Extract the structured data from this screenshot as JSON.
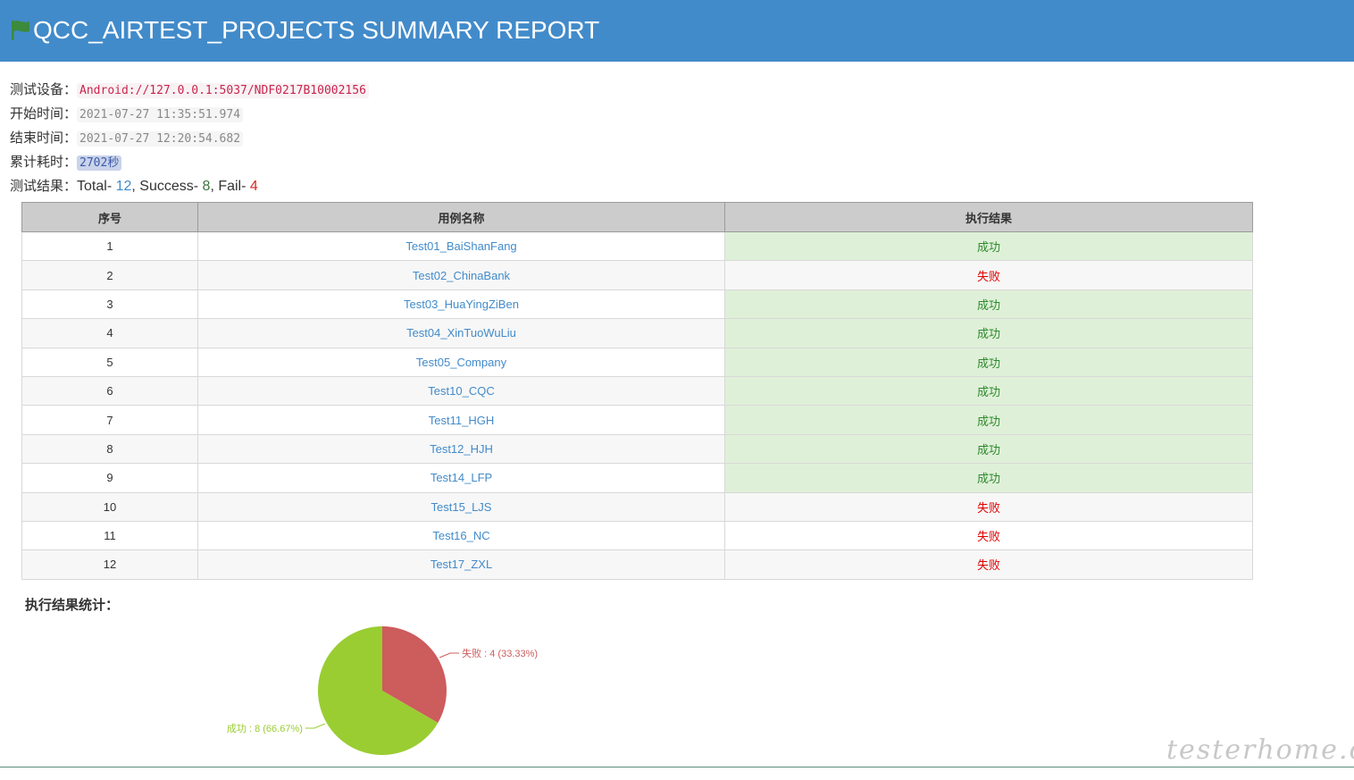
{
  "header": {
    "title": "QCC_AIRTEST_PROJECTS SUMMARY REPORT",
    "flag_color": "#3c8a3c"
  },
  "info": {
    "device_label": "测试设备：",
    "device_value": "Android://127.0.0.1:5037/NDF0217B10002156",
    "start_label": "开始时间：",
    "start_value": "2021-07-27 11:35:51.974",
    "end_label": "结束时间：",
    "end_value": "2021-07-27 12:20:54.682",
    "duration_label": "累计耗时：",
    "duration_value": "2702秒",
    "result_label": "测试结果：",
    "total_text": "Total- ",
    "total_value": "12",
    "success_text": ", Success- ",
    "success_value": "8",
    "fail_text": ", Fail- ",
    "fail_value": "4"
  },
  "table": {
    "headers": [
      "序号",
      "用例名称",
      "执行结果"
    ],
    "rows": [
      {
        "no": "1",
        "name": "Test01_BaiShanFang",
        "result": "成功",
        "status": "pass"
      },
      {
        "no": "2",
        "name": "Test02_ChinaBank",
        "result": "失败",
        "status": "fail"
      },
      {
        "no": "3",
        "name": "Test03_HuaYingZiBen",
        "result": "成功",
        "status": "pass"
      },
      {
        "no": "4",
        "name": "Test04_XinTuoWuLiu",
        "result": "成功",
        "status": "pass"
      },
      {
        "no": "5",
        "name": "Test05_Company",
        "result": "成功",
        "status": "pass"
      },
      {
        "no": "6",
        "name": "Test10_CQC",
        "result": "成功",
        "status": "pass"
      },
      {
        "no": "7",
        "name": "Test11_HGH",
        "result": "成功",
        "status": "pass"
      },
      {
        "no": "8",
        "name": "Test12_HJH",
        "result": "成功",
        "status": "pass"
      },
      {
        "no": "9",
        "name": "Test14_LFP",
        "result": "成功",
        "status": "pass"
      },
      {
        "no": "10",
        "name": "Test15_LJS",
        "result": "失败",
        "status": "fail"
      },
      {
        "no": "11",
        "name": "Test16_NC",
        "result": "失败",
        "status": "fail"
      },
      {
        "no": "12",
        "name": "Test17_ZXL",
        "result": "失败",
        "status": "fail"
      }
    ]
  },
  "stats": {
    "title": "执行结果统计："
  },
  "chart_data": {
    "type": "pie",
    "slices": [
      {
        "label": "失败",
        "value": 4,
        "percent": 33.33,
        "text": "失败 : 4 (33.33%)",
        "color": "#cd5c5c"
      },
      {
        "label": "成功",
        "value": 8,
        "percent": 66.67,
        "text": "成功 : 8 (66.67%)",
        "color": "#9acd32"
      }
    ]
  },
  "watermark": "testerhome.com"
}
